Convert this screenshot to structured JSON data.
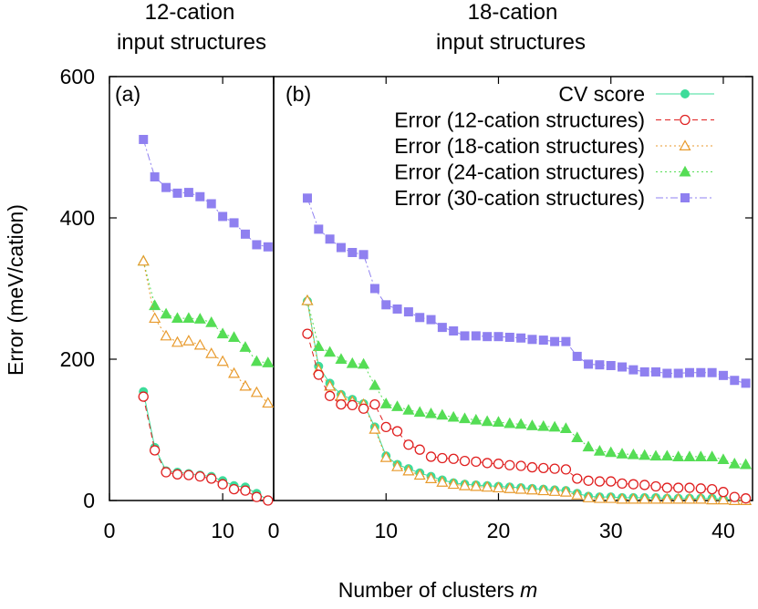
{
  "chart_data": [
    {
      "panel": "a",
      "type": "line",
      "panel_label": "(a)",
      "title_line1": "12-cation",
      "title_line2": "input structures",
      "xlim": [
        0,
        14.5
      ],
      "ylim": [
        0,
        600
      ],
      "xticks": [
        0,
        10
      ],
      "yticks": [
        0,
        200,
        400,
        600
      ],
      "ylabel": "Error (meV/cation)",
      "x": [
        3,
        4,
        5,
        6,
        7,
        8,
        9,
        10,
        11,
        12,
        13,
        14
      ],
      "series": [
        {
          "name": "Error (30-cation structures)",
          "values": [
            511,
            458,
            443,
            435,
            436,
            430,
            420,
            402,
            393,
            377,
            362,
            359
          ]
        },
        {
          "name": "Error (24-cation structures)",
          "values": [
            339,
            276,
            264,
            258,
            258,
            257,
            252,
            236,
            231,
            217,
            197,
            195
          ]
        },
        {
          "name": "Error (18-cation structures)",
          "values": [
            339,
            258,
            233,
            224,
            226,
            220,
            208,
            197,
            180,
            162,
            153,
            138
          ]
        },
        {
          "name": "CV score",
          "values": [
            154,
            75,
            42,
            40,
            38,
            36,
            34,
            28,
            21,
            19,
            10,
            1
          ]
        },
        {
          "name": "Error (12-cation structures)",
          "values": [
            147,
            71,
            40,
            37,
            36,
            34,
            31,
            23,
            16,
            14,
            5,
            0
          ]
        }
      ]
    },
    {
      "panel": "b",
      "type": "line",
      "panel_label": "(b)",
      "title_line1": "18-cation",
      "title_line2": "input structures",
      "xlim": [
        0,
        42.6
      ],
      "ylim": [
        0,
        600
      ],
      "xticks": [
        0,
        10,
        20,
        30,
        40
      ],
      "xlabel": "Number of clusters",
      "xlabel_var": "m",
      "x": [
        3,
        4,
        5,
        6,
        7,
        8,
        9,
        10,
        11,
        12,
        13,
        14,
        15,
        16,
        17,
        18,
        19,
        20,
        21,
        22,
        23,
        24,
        25,
        26,
        27,
        28,
        29,
        30,
        31,
        32,
        33,
        34,
        35,
        36,
        37,
        38,
        39,
        40,
        41,
        42
      ],
      "series": [
        {
          "name": "Error (30-cation structures)",
          "values": [
            428,
            384,
            370,
            358,
            351,
            348,
            300,
            277,
            271,
            267,
            259,
            256,
            245,
            240,
            233,
            233,
            232,
            232,
            231,
            230,
            228,
            227,
            225,
            225,
            204,
            193,
            192,
            191,
            189,
            185,
            182,
            182,
            180,
            180,
            181,
            181,
            181,
            177,
            170,
            166
          ]
        },
        {
          "name": "Error (24-cation structures)",
          "values": [
            283,
            218,
            210,
            200,
            194,
            193,
            163,
            137,
            133,
            128,
            125,
            123,
            121,
            118,
            116,
            114,
            112,
            111,
            109,
            108,
            106,
            105,
            104,
            102,
            89,
            76,
            70,
            68,
            66,
            65,
            64,
            63,
            63,
            62,
            62,
            62,
            62,
            58,
            52,
            51
          ]
        },
        {
          "name": "CV score",
          "values": [
            282,
            190,
            166,
            150,
            143,
            137,
            104,
            63,
            51,
            45,
            39,
            34,
            29,
            25,
            23,
            22,
            21,
            20,
            19,
            18,
            17,
            16,
            15,
            14,
            10,
            6,
            5,
            5,
            4,
            4,
            4,
            4,
            3,
            3,
            3,
            3,
            3,
            2,
            1,
            1
          ]
        },
        {
          "name": "Error (18-cation structures)",
          "values": [
            283,
            185,
            162,
            148,
            140,
            136,
            101,
            61,
            48,
            42,
            36,
            31,
            26,
            23,
            21,
            20,
            19,
            18,
            17,
            16,
            15,
            14,
            13,
            12,
            8,
            4,
            3,
            3,
            2,
            2,
            2,
            2,
            2,
            2,
            2,
            2,
            1,
            1,
            0,
            0
          ]
        },
        {
          "name": "Error (12-cation structures)",
          "values": [
            236,
            178,
            148,
            136,
            135,
            130,
            136,
            104,
            98,
            79,
            72,
            62,
            60,
            59,
            56,
            55,
            53,
            52,
            50,
            49,
            47,
            46,
            45,
            44,
            31,
            28,
            27,
            27,
            24,
            23,
            22,
            20,
            18,
            18,
            18,
            17,
            16,
            12,
            5,
            3
          ]
        }
      ]
    }
  ],
  "legend": {
    "placement": "top-right",
    "entries": [
      {
        "label": "CV score",
        "color": "#3ddc9a",
        "marker": "filled-circle",
        "dash": "solid"
      },
      {
        "label": "Error (12-cation structures)",
        "color": "#e02020",
        "marker": "open-circle",
        "dash": "dashed"
      },
      {
        "label": "Error (18-cation structures)",
        "color": "#e89a2c",
        "marker": "open-triangle",
        "dash": "dotted"
      },
      {
        "label": "Error (24-cation structures)",
        "color": "#55dd55",
        "marker": "filled-triangle",
        "dash": "dotted"
      },
      {
        "label": "Error (30-cation structures)",
        "color": "#8f80f0",
        "marker": "filled-square",
        "dash": "dash-dot"
      }
    ]
  }
}
